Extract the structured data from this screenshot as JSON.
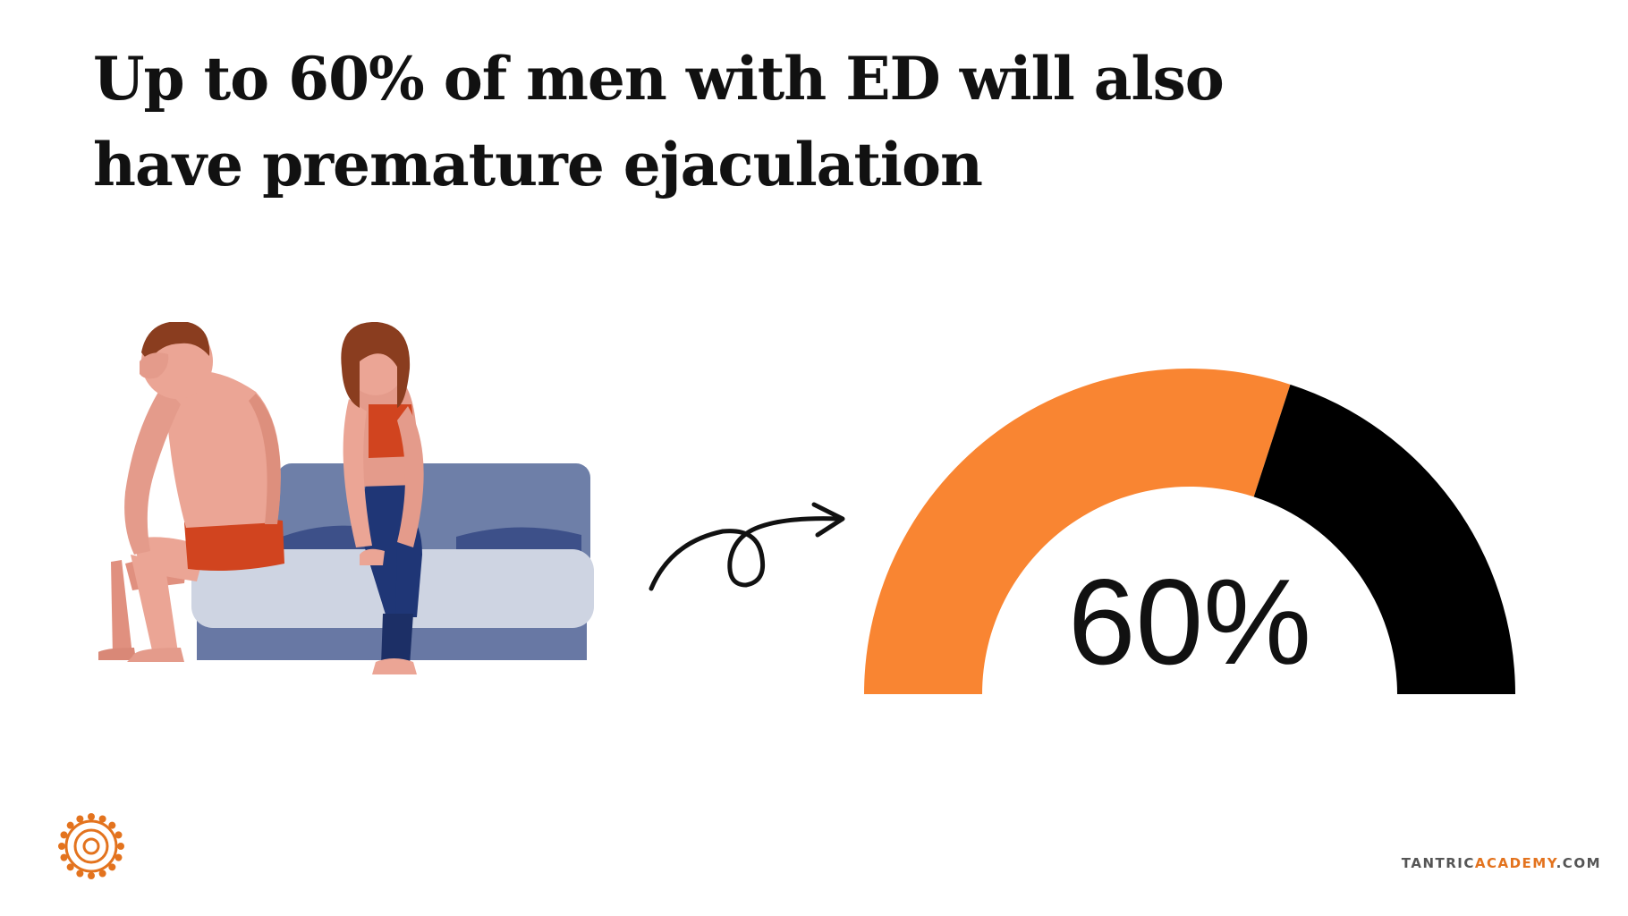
{
  "headline": {
    "line1": "Up to 60% of men with ED will also",
    "line2": "have premature ejaculation"
  },
  "chart_data": {
    "type": "gauge",
    "value": 60,
    "max": 100,
    "label": "60%",
    "colors": {
      "filled": "#f98532",
      "remaining": "#000000",
      "label": "#111111"
    }
  },
  "illustration": {
    "icon": "couple-on-bed-illustration"
  },
  "arrow": {
    "icon": "curly-arrow-icon"
  },
  "footer": {
    "logo_icon": "orange-mandala-logo-icon",
    "brand_part1": "TANTRIC",
    "brand_part2": "ACADEMY",
    "brand_part3": ".COM"
  },
  "colors": {
    "accent": "#f98532",
    "text": "#111111"
  }
}
